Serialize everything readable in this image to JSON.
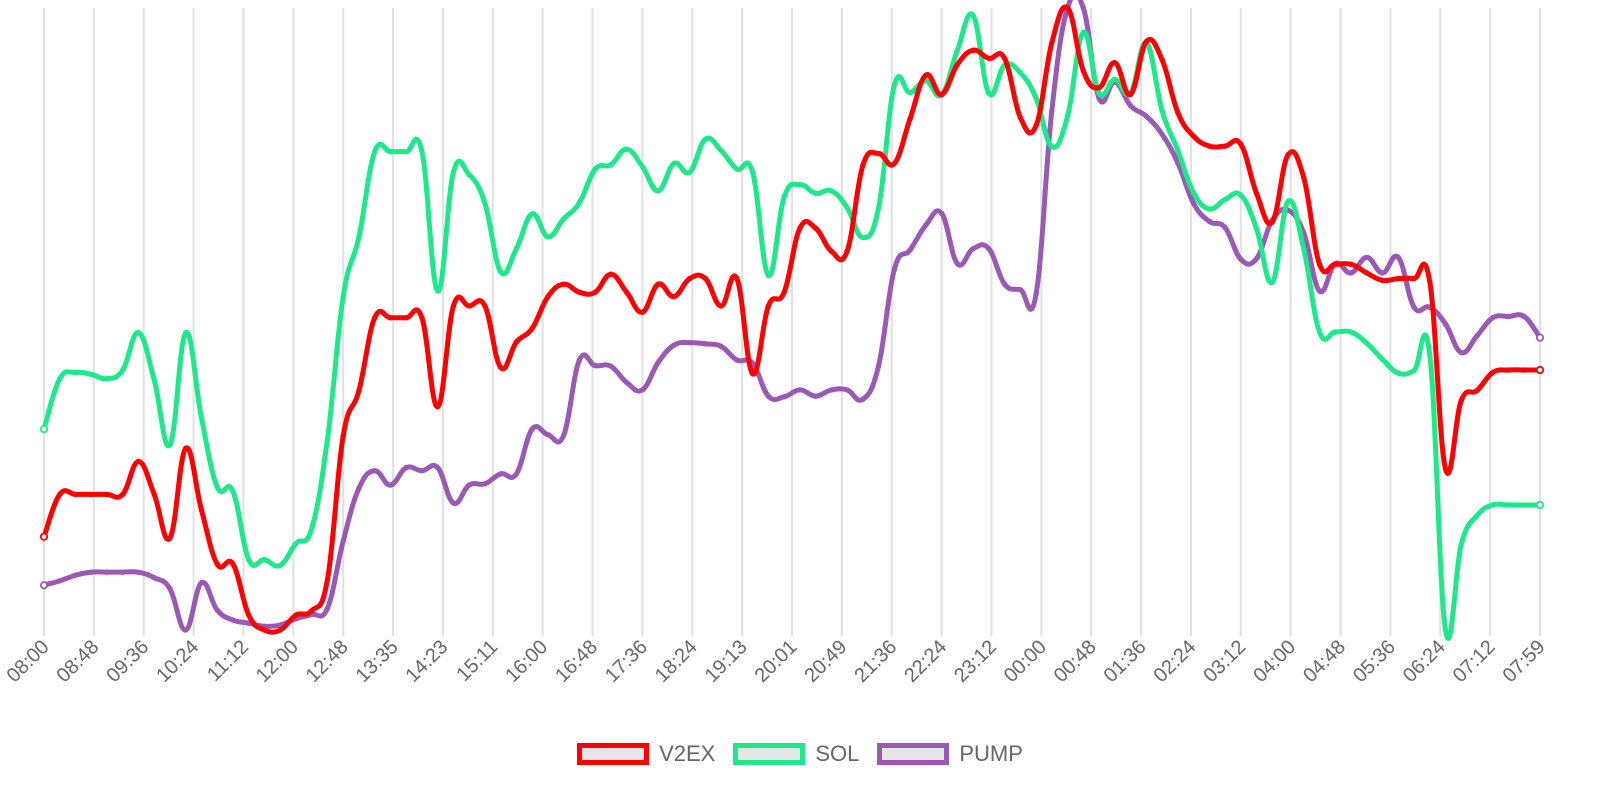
{
  "chart_data": {
    "type": "line",
    "x_ticks": [
      "08:00",
      "08:48",
      "09:36",
      "10:24",
      "11:12",
      "12:00",
      "12:48",
      "13:35",
      "14:23",
      "15:11",
      "16:00",
      "16:48",
      "17:36",
      "18:24",
      "19:13",
      "20:01",
      "20:49",
      "21:36",
      "22:24",
      "23:12",
      "00:00",
      "00:48",
      "01:36",
      "02:24",
      "03:12",
      "04:00",
      "04:48",
      "05:36",
      "06:24",
      "07:12",
      "07:59"
    ],
    "ylim": [
      0,
      100
    ],
    "grid": "vertical",
    "legend_position": "bottom",
    "series": [
      {
        "name": "V2EX",
        "color": "#ff0000",
        "values": [
          15,
          21.8,
          21.8,
          21.8,
          21.8,
          21.8,
          27.1,
          21.8,
          14.8,
          29.2,
          19.3,
          10.6,
          10.6,
          2.4,
          0,
          0,
          2.4,
          3.1,
          8.1,
          31.2,
          38.5,
          50.2,
          50.2,
          50.2,
          50.2,
          35.9,
          52.1,
          52.1,
          52.1,
          42.2,
          46.3,
          48.5,
          53.6,
          55.6,
          54.3,
          54.3,
          57.2,
          54.3,
          51.1,
          55.6,
          53.6,
          56.5,
          56.5,
          52.1,
          56.5,
          41.2,
          52.1,
          54.3,
          64.6,
          64.6,
          60.9,
          60.9,
          74.7,
          76.6,
          75,
          82.2,
          89.2,
          86.1,
          90.9,
          93.2,
          91.9,
          91.9,
          82.4,
          81.1,
          94.4,
          100,
          89.9,
          87.2,
          91.2,
          86.1,
          94.6,
          91.7,
          83.2,
          79.4,
          77.8,
          77.8,
          78.1,
          70.2,
          65.6,
          76.4,
          72.7,
          58.8,
          58.8,
          58.8,
          57.4,
          56.2,
          56.5,
          56.5,
          56,
          25.9,
          36.9,
          38.5,
          41.4,
          41.8,
          41.8,
          41.8
        ]
      },
      {
        "name": "SOL",
        "color": "#1de98b",
        "values": [
          32.3,
          40.4,
          41.4,
          41.1,
          40.4,
          41.8,
          47.8,
          40.2,
          29.8,
          47.8,
          34.1,
          23,
          22.3,
          11.3,
          11.3,
          10.4,
          13.9,
          16.3,
          30.7,
          53.6,
          63.2,
          76.9,
          76.9,
          76.9,
          76.9,
          54.5,
          73.6,
          73.2,
          68.6,
          57.6,
          61.3,
          66.9,
          63.2,
          66.1,
          68.7,
          74.1,
          74.8,
          77.3,
          74.5,
          70.6,
          75,
          73.6,
          78.9,
          77.1,
          74.1,
          73.6,
          57,
          69.6,
          71.6,
          70.2,
          70.6,
          67.9,
          63.1,
          67.9,
          87.6,
          86.4,
          88.3,
          86,
          93.2,
          98.8,
          86.3,
          90.8,
          89.6,
          85.5,
          77.7,
          82.6,
          96.1,
          86.3,
          88.5,
          86.3,
          94.4,
          83.5,
          77.1,
          70.3,
          67.7,
          69.2,
          69.9,
          64.5,
          55.9,
          68.9,
          61.2,
          47.9,
          47.9,
          47.9,
          46.1,
          43.5,
          41.3,
          41.7,
          44.2,
          0,
          13.8,
          18.4,
          20.1,
          20.1,
          20.1,
          20.1
        ]
      },
      {
        "name": "PUMP",
        "color": "#9b59b6",
        "values": [
          7.2,
          7.9,
          8.8,
          9.3,
          9.3,
          9.3,
          9.3,
          8.4,
          6.6,
          0,
          7.6,
          3.2,
          1.6,
          1.1,
          0.6,
          0.8,
          1.8,
          2.5,
          3.5,
          14.3,
          22.8,
          25.6,
          23.3,
          26.1,
          25.6,
          26.1,
          20.4,
          23.3,
          23.5,
          25.1,
          25.1,
          32.3,
          31.4,
          31.3,
          43.4,
          42.5,
          42.4,
          39.8,
          38.6,
          43,
          45.8,
          46.2,
          46,
          45.6,
          43.4,
          42.9,
          37.6,
          37.5,
          38.6,
          37.6,
          38.6,
          38.6,
          37.1,
          42.5,
          58,
          61.1,
          65.1,
          67,
          58.9,
          61.3,
          61.3,
          55.6,
          54.7,
          54,
          83.5,
          100,
          100,
          85.5,
          88.1,
          84.3,
          82.6,
          79.7,
          75.1,
          68.6,
          65.7,
          64.7,
          59.6,
          59.7,
          65.9,
          67.5,
          63.8,
          54.5,
          58.9,
          57.4,
          59.9,
          57.4,
          59.9,
          51.9,
          51.9,
          49.2,
          44.6,
          47.3,
          50.2,
          50.4,
          50.4,
          47
        ]
      }
    ]
  }
}
